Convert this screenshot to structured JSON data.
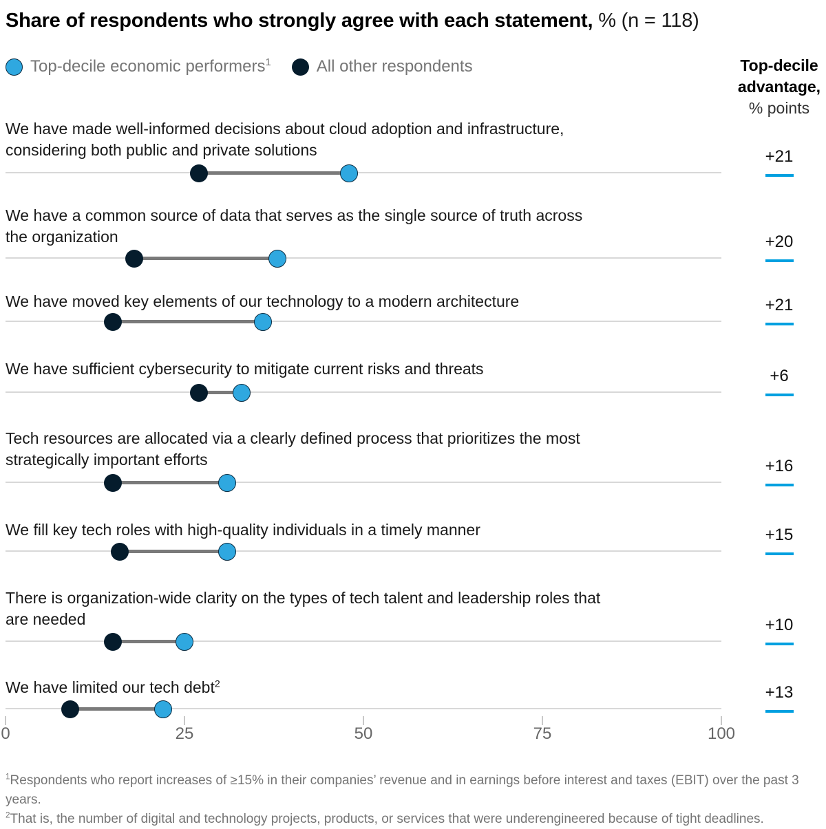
{
  "title": {
    "bold": "Share of respondents who strongly agree with each statement,",
    "regular": " % (n = 118)"
  },
  "legend": [
    {
      "label": "Top-decile economic performers",
      "sup": "1",
      "color": "#2FA8E0"
    },
    {
      "label": "All other respondents",
      "sup": "",
      "color": "#051C2C"
    }
  ],
  "advantage_header": {
    "line1_bold": "Top-decile",
    "line2_bold": "advantage,",
    "line3_regular": "% points"
  },
  "chart_data": {
    "type": "dumbbell",
    "title": "Share of respondents who strongly agree with each statement, % (n = 118)",
    "x_axis": {
      "min": 0,
      "max": 100,
      "ticks": [
        0,
        25,
        50,
        75,
        100
      ]
    },
    "series_names": [
      "Top-decile economic performers",
      "All other respondents"
    ],
    "rows": [
      {
        "lines": [
          "We have made well-informed decisions about cloud adoption and infrastructure,",
          "considering both public and private solutions"
        ],
        "sup": "",
        "top_decile": 48,
        "all_other": 27,
        "advantage": "+21"
      },
      {
        "lines": [
          "We have a common source of data that serves as the single source of truth across",
          "the organization"
        ],
        "sup": "",
        "top_decile": 38,
        "all_other": 18,
        "advantage": "+20"
      },
      {
        "lines": [
          "We have moved key elements of our technology to a modern architecture"
        ],
        "sup": "",
        "top_decile": 36,
        "all_other": 15,
        "advantage": "+21"
      },
      {
        "lines": [
          "We have sufficient cybersecurity to mitigate current risks and threats"
        ],
        "sup": "",
        "top_decile": 33,
        "all_other": 27,
        "advantage": "+6"
      },
      {
        "lines": [
          "Tech resources are allocated via a clearly defined process that prioritizes the most",
          "strategically important efforts"
        ],
        "sup": "",
        "top_decile": 31,
        "all_other": 15,
        "advantage": "+16"
      },
      {
        "lines": [
          "We fill key tech roles with high-quality individuals in a timely manner"
        ],
        "sup": "",
        "top_decile": 31,
        "all_other": 16,
        "advantage": "+15"
      },
      {
        "lines": [
          "There is organization-wide clarity on the types of tech talent and leadership roles that",
          "are needed"
        ],
        "sup": "",
        "top_decile": 25,
        "all_other": 15,
        "advantage": "+10"
      },
      {
        "lines": [
          "We have limited our tech debt"
        ],
        "sup": "2",
        "top_decile": 22,
        "all_other": 9,
        "advantage": "+13"
      }
    ]
  },
  "footnotes": [
    {
      "marker": "1",
      "text": "Respondents who report increases of ≥15% in their companies’ revenue and in earnings before interest and taxes (EBIT) over the past 3 years."
    },
    {
      "marker": "2",
      "text": "That is, the number of digital and technology projects, products, or services that were underengineered because of tight deadlines."
    }
  ],
  "colors": {
    "top_decile": "#2FA8E0",
    "top_decile_border": "#0A2C42",
    "all_other": "#051C2C",
    "connector": "#7A7A7A",
    "gridline": "#D8D8D8",
    "advantage_underline": "#00A0E0"
  }
}
